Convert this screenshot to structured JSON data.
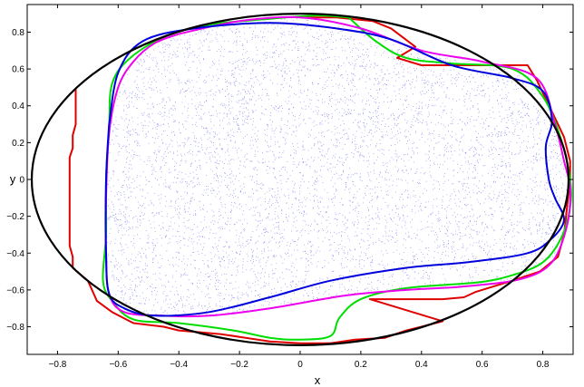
{
  "chart_data": {
    "type": "line",
    "title": "",
    "xlabel": "x",
    "ylabel": "y",
    "xlim": [
      -0.9,
      0.9
    ],
    "ylim": [
      -0.95,
      0.95
    ],
    "xticks": [
      -0.8,
      -0.6,
      -0.4,
      -0.2,
      0,
      0.2,
      0.4,
      0.6,
      0.8
    ],
    "yticks": [
      -0.8,
      -0.6,
      -0.4,
      -0.2,
      0,
      0.2,
      0.4,
      0.6,
      0.8
    ],
    "xtick_labels": [
      "−0.8",
      "−0.6",
      "−0.4",
      "−0.2",
      "0",
      "0.2",
      "0.4",
      "0.6",
      "0.8"
    ],
    "ytick_labels": [
      "−0.8",
      "−0.6",
      "−0.4",
      "−0.2",
      "0",
      "0.2",
      "0.4",
      "0.6",
      "0.8"
    ],
    "grid": false,
    "boundary": {
      "type": "ellipse",
      "cx": 0,
      "cy": 0,
      "rx": 0.885,
      "ry": 0.9,
      "color": "#000000"
    },
    "scatter_fill": {
      "color": "#2222dd",
      "description_points": "dense cloud of small points inside the outermost curve"
    },
    "series": [
      {
        "color": "#e00000",
        "points": [
          [
            -0.74,
            0.49
          ],
          [
            -0.74,
            0.3
          ],
          [
            -0.75,
            0.24
          ],
          [
            -0.75,
            0.17
          ],
          [
            -0.76,
            0.12
          ],
          [
            -0.76,
            -0.36
          ],
          [
            -0.75,
            -0.42
          ],
          [
            -0.75,
            -0.48
          ],
          [
            -0.7,
            -0.55
          ],
          [
            -0.67,
            -0.66
          ],
          [
            -0.62,
            -0.72
          ],
          [
            -0.55,
            -0.78
          ],
          [
            -0.45,
            -0.8
          ],
          [
            -0.4,
            -0.82
          ],
          [
            -0.33,
            -0.83
          ],
          [
            -0.26,
            -0.84
          ],
          [
            -0.18,
            -0.86
          ],
          [
            -0.1,
            -0.88
          ],
          [
            0.0,
            -0.89
          ],
          [
            0.1,
            -0.89
          ],
          [
            0.18,
            -0.87
          ],
          [
            0.28,
            -0.86
          ],
          [
            0.35,
            -0.82
          ],
          [
            0.4,
            -0.8
          ],
          [
            0.47,
            -0.77
          ],
          [
            0.23,
            -0.65
          ],
          [
            0.47,
            -0.65
          ],
          [
            0.54,
            -0.64
          ],
          [
            0.58,
            -0.61
          ],
          [
            0.64,
            -0.58
          ],
          [
            0.7,
            -0.55
          ],
          [
            0.79,
            -0.5
          ],
          [
            0.85,
            -0.42
          ],
          [
            0.87,
            -0.3
          ],
          [
            0.88,
            -0.15
          ],
          [
            0.89,
            0.0
          ],
          [
            0.89,
            0.1
          ],
          [
            0.87,
            0.23
          ],
          [
            0.85,
            0.3
          ],
          [
            0.78,
            0.54
          ],
          [
            0.75,
            0.62
          ],
          [
            0.4,
            0.62
          ],
          [
            0.32,
            0.66
          ],
          [
            0.38,
            0.72
          ],
          [
            0.3,
            0.82
          ],
          [
            0.24,
            0.86
          ],
          [
            0.12,
            0.88
          ],
          [
            0.0,
            0.88
          ]
        ]
      },
      {
        "color": "#00dd00",
        "points": [
          [
            0.16,
            0.88
          ],
          [
            0.25,
            0.75
          ],
          [
            0.35,
            0.66
          ],
          [
            0.5,
            0.63
          ],
          [
            0.7,
            0.6
          ],
          [
            0.8,
            0.45
          ],
          [
            0.86,
            0.22
          ],
          [
            0.89,
            0.0
          ],
          [
            0.89,
            -0.15
          ],
          [
            0.86,
            -0.32
          ],
          [
            0.8,
            -0.45
          ],
          [
            0.7,
            -0.52
          ],
          [
            0.58,
            -0.56
          ],
          [
            0.35,
            -0.59
          ],
          [
            0.2,
            -0.65
          ],
          [
            0.13,
            -0.75
          ],
          [
            0.1,
            -0.85
          ],
          [
            0.0,
            -0.87
          ],
          [
            -0.1,
            -0.86
          ],
          [
            -0.22,
            -0.82
          ],
          [
            -0.4,
            -0.78
          ],
          [
            -0.55,
            -0.76
          ],
          [
            -0.62,
            -0.66
          ],
          [
            -0.65,
            -0.55
          ],
          [
            -0.64,
            -0.3
          ],
          [
            -0.64,
            0.0
          ],
          [
            -0.63,
            0.28
          ],
          [
            -0.62,
            0.52
          ],
          [
            -0.56,
            0.66
          ],
          [
            -0.44,
            0.78
          ],
          [
            -0.3,
            0.84
          ],
          [
            -0.12,
            0.87
          ],
          [
            0.05,
            0.89
          ],
          [
            0.16,
            0.88
          ]
        ]
      },
      {
        "color": "#ee00ee",
        "points": [
          [
            -0.4,
            0.79
          ],
          [
            -0.2,
            0.86
          ],
          [
            0.0,
            0.88
          ],
          [
            0.2,
            0.82
          ],
          [
            0.4,
            0.7
          ],
          [
            0.6,
            0.64
          ],
          [
            0.78,
            0.55
          ],
          [
            0.84,
            0.3
          ],
          [
            0.87,
            0.1
          ],
          [
            0.89,
            -0.05
          ],
          [
            0.88,
            -0.25
          ],
          [
            0.83,
            -0.45
          ],
          [
            0.73,
            -0.54
          ],
          [
            0.55,
            -0.58
          ],
          [
            0.35,
            -0.6
          ],
          [
            0.15,
            -0.63
          ],
          [
            -0.1,
            -0.7
          ],
          [
            -0.3,
            -0.74
          ],
          [
            -0.45,
            -0.74
          ],
          [
            -0.58,
            -0.72
          ],
          [
            -0.63,
            -0.62
          ],
          [
            -0.64,
            -0.4
          ],
          [
            -0.64,
            -0.1
          ],
          [
            -0.63,
            0.25
          ],
          [
            -0.6,
            0.5
          ],
          [
            -0.55,
            0.64
          ],
          [
            -0.48,
            0.74
          ],
          [
            -0.4,
            0.79
          ]
        ]
      },
      {
        "color": "#0000dd",
        "points": [
          [
            -0.63,
            0.3
          ],
          [
            -0.6,
            0.58
          ],
          [
            -0.52,
            0.75
          ],
          [
            -0.35,
            0.82
          ],
          [
            -0.1,
            0.85
          ],
          [
            0.12,
            0.82
          ],
          [
            0.3,
            0.76
          ],
          [
            0.5,
            0.62
          ],
          [
            0.7,
            0.55
          ],
          [
            0.8,
            0.48
          ],
          [
            0.83,
            0.32
          ],
          [
            0.81,
            0.18
          ],
          [
            0.82,
            0.0
          ],
          [
            0.84,
            -0.1
          ],
          [
            0.87,
            -0.22
          ],
          [
            0.83,
            -0.32
          ],
          [
            0.75,
            -0.4
          ],
          [
            0.55,
            -0.45
          ],
          [
            0.35,
            -0.48
          ],
          [
            0.1,
            -0.55
          ],
          [
            -0.1,
            -0.64
          ],
          [
            -0.3,
            -0.72
          ],
          [
            -0.48,
            -0.74
          ],
          [
            -0.58,
            -0.7
          ],
          [
            -0.63,
            -0.62
          ],
          [
            -0.64,
            -0.4
          ],
          [
            -0.64,
            0.0
          ],
          [
            -0.63,
            0.3
          ]
        ]
      }
    ]
  }
}
